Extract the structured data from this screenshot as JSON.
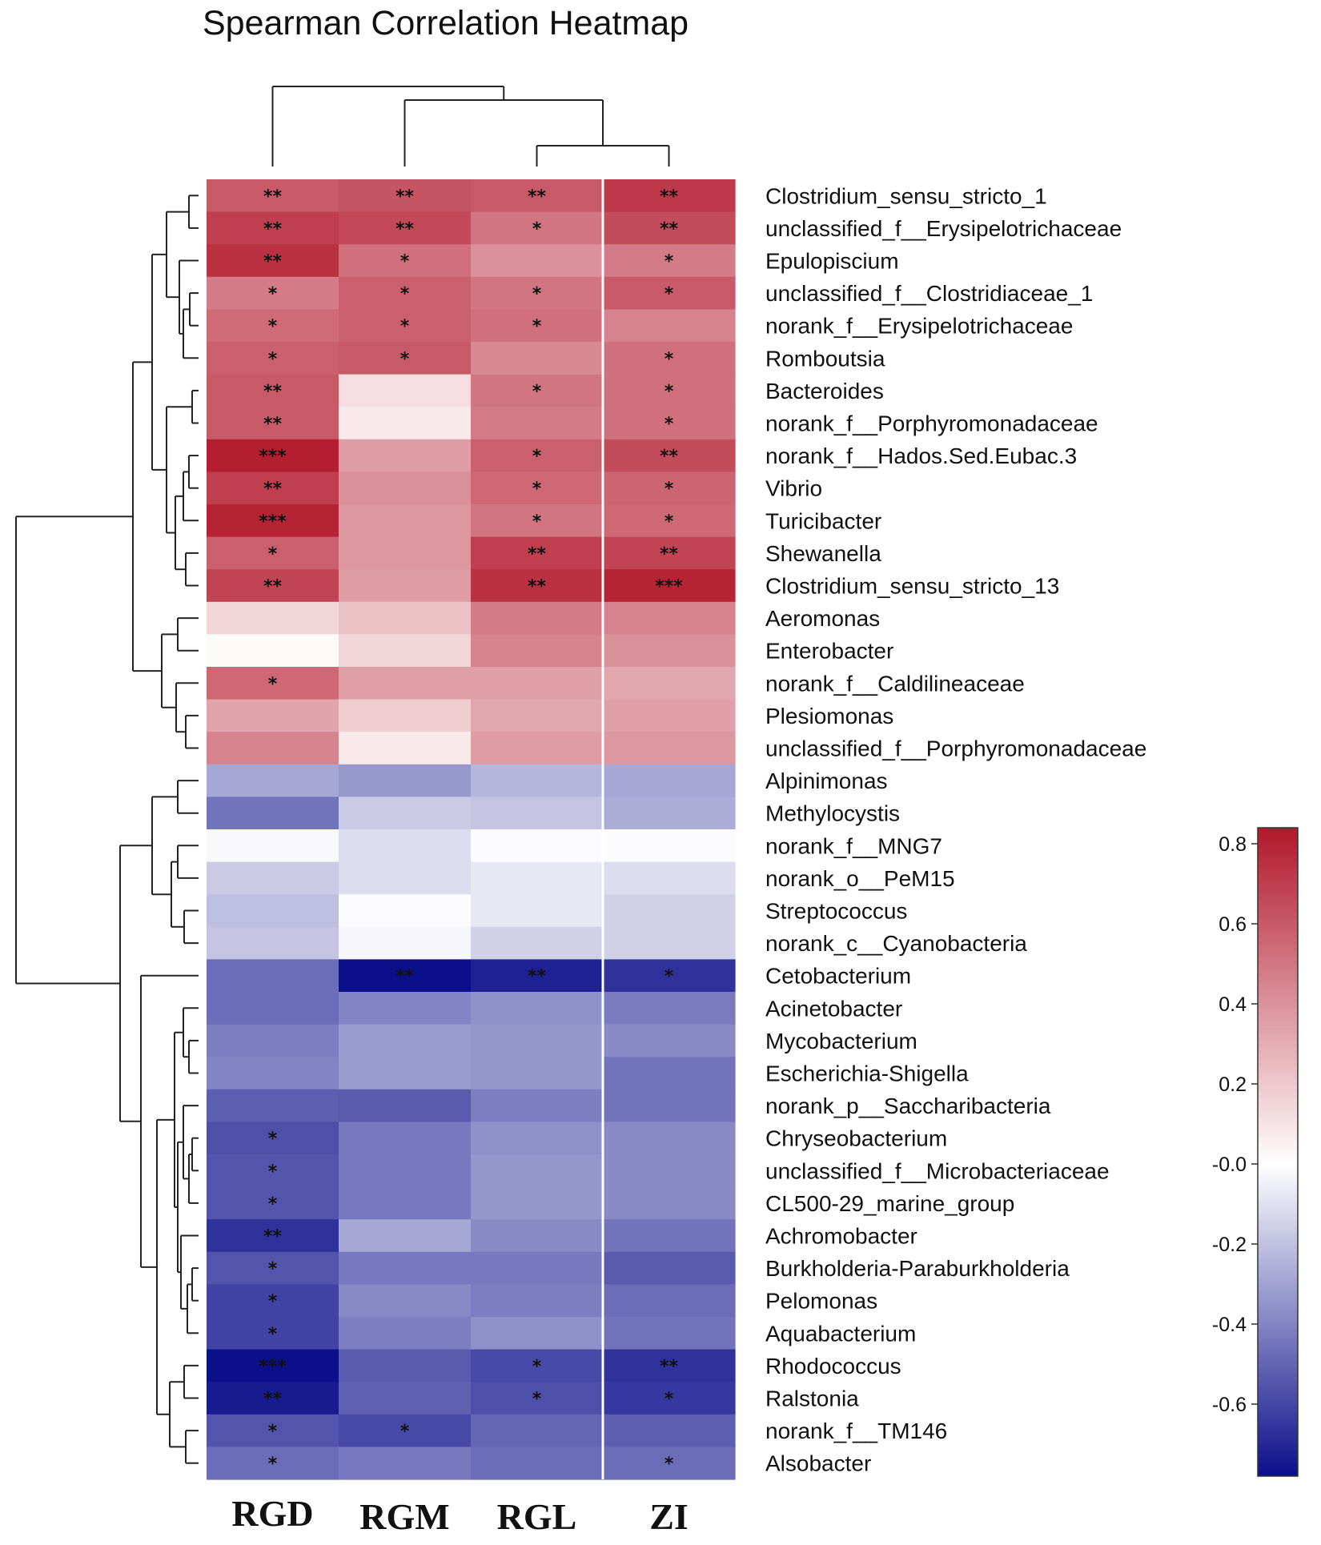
{
  "chart_data": {
    "type": "heatmap",
    "title": "Spearman Correlation Heatmap",
    "columns": [
      "RGD",
      "RGM",
      "RGL",
      "ZI"
    ],
    "rows": [
      {
        "label": "Clostridium_sensu_stricto_1",
        "values": [
          0.6,
          0.62,
          0.6,
          0.72
        ],
        "sig": [
          "**",
          "**",
          "**",
          "**"
        ]
      },
      {
        "label": "unclassified_f__Erysipelotrichaceae",
        "values": [
          0.7,
          0.66,
          0.5,
          0.65
        ],
        "sig": [
          "**",
          "**",
          "*",
          "**"
        ]
      },
      {
        "label": "Epulopiscium",
        "values": [
          0.75,
          0.52,
          0.4,
          0.48
        ],
        "sig": [
          "**",
          "*",
          "",
          "*"
        ]
      },
      {
        "label": "unclassified_f__Clostridiaceae_1",
        "values": [
          0.48,
          0.58,
          0.5,
          0.6
        ],
        "sig": [
          "*",
          "*",
          "*",
          "*"
        ]
      },
      {
        "label": "norank_f__Erysipelotrichaceae",
        "values": [
          0.54,
          0.58,
          0.52,
          0.45
        ],
        "sig": [
          "*",
          "*",
          "*",
          ""
        ]
      },
      {
        "label": "Romboutsia",
        "values": [
          0.58,
          0.6,
          0.43,
          0.52
        ],
        "sig": [
          "*",
          "*",
          "",
          "*"
        ]
      },
      {
        "label": "Bacteroides",
        "values": [
          0.6,
          0.12,
          0.5,
          0.52
        ],
        "sig": [
          "**",
          "",
          "*",
          "*"
        ]
      },
      {
        "label": "norank_f__Porphyromonadaceae",
        "values": [
          0.6,
          0.08,
          0.48,
          0.52
        ],
        "sig": [
          "**",
          "",
          "",
          "*"
        ]
      },
      {
        "label": "norank_f__Hados.Sed.Eubac.3",
        "values": [
          0.82,
          0.36,
          0.58,
          0.65
        ],
        "sig": [
          "***",
          "",
          "*",
          "**"
        ]
      },
      {
        "label": "Vibrio",
        "values": [
          0.7,
          0.4,
          0.55,
          0.56
        ],
        "sig": [
          "**",
          "",
          "*",
          "*"
        ]
      },
      {
        "label": "Turicibacter",
        "values": [
          0.8,
          0.38,
          0.5,
          0.55
        ],
        "sig": [
          "***",
          "",
          "*",
          "*"
        ]
      },
      {
        "label": "Shewanella",
        "values": [
          0.58,
          0.38,
          0.7,
          0.68
        ],
        "sig": [
          "*",
          "",
          "**",
          "**"
        ]
      },
      {
        "label": "Clostridium_sensu_stricto_13",
        "values": [
          0.68,
          0.36,
          0.75,
          0.8
        ],
        "sig": [
          "**",
          "",
          "**",
          "***"
        ]
      },
      {
        "label": "Aeromonas",
        "values": [
          0.15,
          0.22,
          0.48,
          0.45
        ],
        "sig": [
          "",
          "",
          "",
          ""
        ]
      },
      {
        "label": "Enterobacter",
        "values": [
          0.02,
          0.15,
          0.45,
          0.4
        ],
        "sig": [
          "",
          "",
          "",
          ""
        ]
      },
      {
        "label": "norank_f__Caldilineaceae",
        "values": [
          0.55,
          0.35,
          0.35,
          0.32
        ],
        "sig": [
          "*",
          "",
          "",
          ""
        ]
      },
      {
        "label": "Plesiomonas",
        "values": [
          0.33,
          0.18,
          0.32,
          0.35
        ],
        "sig": [
          "",
          "",
          "",
          ""
        ]
      },
      {
        "label": "unclassified_f__Porphyromonadaceae",
        "values": [
          0.45,
          0.08,
          0.36,
          0.38
        ],
        "sig": [
          "",
          "",
          "",
          ""
        ]
      },
      {
        "label": "Alpinimonas",
        "values": [
          -0.3,
          -0.35,
          -0.25,
          -0.3
        ],
        "sig": [
          "",
          "",
          "",
          ""
        ]
      },
      {
        "label": "Methylocystis",
        "values": [
          -0.48,
          -0.18,
          -0.2,
          -0.28
        ],
        "sig": [
          "",
          "",
          "",
          ""
        ]
      },
      {
        "label": "norank_f__MNG7",
        "values": [
          -0.02,
          -0.12,
          -0.01,
          -0.01
        ],
        "sig": [
          "",
          "",
          "",
          ""
        ]
      },
      {
        "label": "norank_o__PeM15",
        "values": [
          -0.18,
          -0.12,
          -0.08,
          -0.12
        ],
        "sig": [
          "",
          "",
          "",
          ""
        ]
      },
      {
        "label": "Streptococcus",
        "values": [
          -0.22,
          -0.01,
          -0.08,
          -0.16
        ],
        "sig": [
          "",
          "",
          "",
          ""
        ]
      },
      {
        "label": "norank_c__Cyanobacteria",
        "values": [
          -0.2,
          -0.03,
          -0.16,
          -0.16
        ],
        "sig": [
          "",
          "",
          "",
          ""
        ]
      },
      {
        "label": "Cetobacterium",
        "values": [
          -0.5,
          -0.82,
          -0.76,
          -0.7
        ],
        "sig": [
          "",
          "**",
          "**",
          "*"
        ]
      },
      {
        "label": "Acinetobacter",
        "values": [
          -0.5,
          -0.42,
          -0.38,
          -0.45
        ],
        "sig": [
          "",
          "",
          "",
          ""
        ]
      },
      {
        "label": "Mycobacterium",
        "values": [
          -0.44,
          -0.34,
          -0.36,
          -0.4
        ],
        "sig": [
          "",
          "",
          "",
          ""
        ]
      },
      {
        "label": "Escherichia-Shigella",
        "values": [
          -0.42,
          -0.34,
          -0.36,
          -0.48
        ],
        "sig": [
          "",
          "",
          "",
          ""
        ]
      },
      {
        "label": "norank_p__Saccharibacteria",
        "values": [
          -0.55,
          -0.56,
          -0.44,
          -0.48
        ],
        "sig": [
          "",
          "",
          "",
          ""
        ]
      },
      {
        "label": "Chryseobacterium",
        "values": [
          -0.6,
          -0.46,
          -0.38,
          -0.4
        ],
        "sig": [
          "*",
          "",
          "",
          ""
        ]
      },
      {
        "label": "unclassified_f__Microbacteriaceae",
        "values": [
          -0.58,
          -0.46,
          -0.36,
          -0.4
        ],
        "sig": [
          "*",
          "",
          "",
          ""
        ]
      },
      {
        "label": "CL500-29_marine_group",
        "values": [
          -0.58,
          -0.46,
          -0.36,
          -0.4
        ],
        "sig": [
          "*",
          "",
          "",
          ""
        ]
      },
      {
        "label": "Achromobacter",
        "values": [
          -0.7,
          -0.3,
          -0.4,
          -0.48
        ],
        "sig": [
          "**",
          "",
          "",
          ""
        ]
      },
      {
        "label": "Burkholderia-Paraburkholderia",
        "values": [
          -0.58,
          -0.46,
          -0.46,
          -0.56
        ],
        "sig": [
          "*",
          "",
          "",
          ""
        ]
      },
      {
        "label": "Pelomonas",
        "values": [
          -0.64,
          -0.4,
          -0.44,
          -0.5
        ],
        "sig": [
          "*",
          "",
          "",
          ""
        ]
      },
      {
        "label": "Aquabacterium",
        "values": [
          -0.64,
          -0.44,
          -0.38,
          -0.48
        ],
        "sig": [
          "*",
          "",
          "",
          ""
        ]
      },
      {
        "label": "Rhodococcus",
        "values": [
          -0.82,
          -0.56,
          -0.62,
          -0.7
        ],
        "sig": [
          "***",
          "",
          "*",
          "**"
        ]
      },
      {
        "label": "Ralstonia",
        "values": [
          -0.78,
          -0.54,
          -0.6,
          -0.68
        ],
        "sig": [
          "**",
          "",
          "*",
          "*"
        ]
      },
      {
        "label": "norank_f__TM146",
        "values": [
          -0.58,
          -0.62,
          -0.52,
          -0.55
        ],
        "sig": [
          "*",
          "*",
          "",
          ""
        ]
      },
      {
        "label": "Alsobacter",
        "values": [
          -0.5,
          -0.46,
          -0.5,
          -0.5
        ],
        "sig": [
          "*",
          "",
          "",
          "*"
        ]
      }
    ],
    "colorbar": {
      "ticks": [
        "0.8",
        "0.6",
        "0.4",
        "0.2",
        "-0.0",
        "-0.2",
        "-0.4",
        "-0.6"
      ],
      "tick_values": [
        0.8,
        0.6,
        0.4,
        0.2,
        0.0,
        -0.2,
        -0.4,
        -0.6
      ],
      "range": [
        -0.78,
        0.84
      ],
      "colors": {
        "positive": "#b2182b",
        "zero": "#ffffff",
        "negative": "#0c0f8a"
      }
    }
  }
}
